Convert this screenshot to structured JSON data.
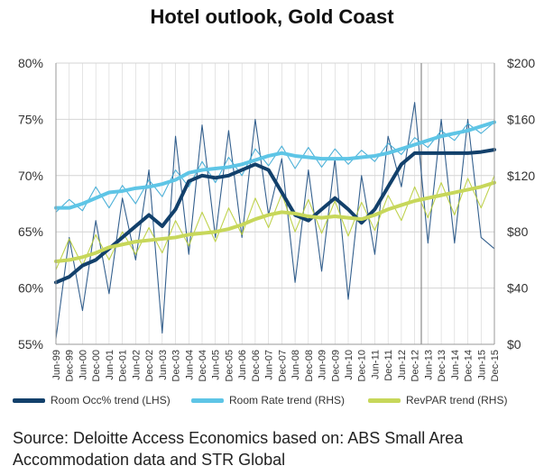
{
  "title": "Hotel outlook, Gold Coast",
  "source_note": "Source: Deloitte Access Economics based on: ABS Small Area Accommodation data and STR Global",
  "colors": {
    "occ_trend": "#12406b",
    "occ_raw": "#1e4f82",
    "rate_trend": "#5ec5e6",
    "rate_raw": "#3aa8d4",
    "revpar_trend": "#c7d75a",
    "revpar_raw": "#b8cd3a",
    "grid": "#d4d4d4",
    "marker": "#8c8c8c"
  },
  "chart_data": {
    "type": "line",
    "title": "Hotel outlook, Gold Coast",
    "x": [
      "Jun-99",
      "Dec-99",
      "Jun-00",
      "Dec-00",
      "Jun-01",
      "Dec-01",
      "Jun-02",
      "Dec-02",
      "Jun-03",
      "Dec-03",
      "Jun-04",
      "Dec-04",
      "Jun-05",
      "Dec-05",
      "Jun-06",
      "Dec-06",
      "Jun-07",
      "Dec-07",
      "Jun-08",
      "Dec-08",
      "Jun-09",
      "Dec-09",
      "Jun-10",
      "Dec-10",
      "Jun-11",
      "Dec-11",
      "Jun-12",
      "Dec-12",
      "Jun-13",
      "Dec-13",
      "Jun-14",
      "Dec-14",
      "Jun-15",
      "Dec-15"
    ],
    "y_left": {
      "min": 55,
      "max": 80,
      "ticks": [
        "55%",
        "60%",
        "65%",
        "70%",
        "75%",
        "80%"
      ]
    },
    "y_right": {
      "min": 0,
      "max": 200,
      "ticks": [
        "$0",
        "$40",
        "$80",
        "$120",
        "$160",
        "$200"
      ]
    },
    "grid": true,
    "legend_position": "bottom",
    "forecast_from": "Dec-12",
    "series": [
      {
        "name": "Room Occ% trend (LHS)",
        "axis": "left",
        "style": "trend",
        "color_key": "occ_trend",
        "values": [
          60.5,
          61.0,
          62.0,
          62.5,
          63.5,
          64.5,
          65.5,
          66.5,
          65.5,
          67.0,
          69.5,
          70.0,
          69.8,
          70.0,
          70.5,
          71.0,
          70.5,
          68.5,
          66.5,
          66.0,
          67.0,
          68.0,
          67.0,
          65.8,
          67.0,
          69.0,
          71.0,
          72.0,
          72.0,
          72.0,
          72.0,
          72.0,
          72.1,
          72.3
        ]
      },
      {
        "name": "Room Rate trend (RHS)",
        "axis": "right",
        "style": "trend",
        "color_key": "rate_trend",
        "values": [
          97,
          97,
          100,
          104,
          108,
          109,
          111,
          112,
          114,
          117,
          122,
          124,
          125,
          126,
          128,
          131,
          134,
          136,
          134,
          133,
          132,
          132,
          132,
          133,
          134,
          136,
          139,
          142,
          145,
          148,
          150,
          152,
          155,
          158
        ]
      },
      {
        "name": "RevPAR trend (RHS)",
        "axis": "right",
        "style": "trend",
        "color_key": "revpar_trend",
        "values": [
          59,
          60,
          62,
          65,
          69,
          71,
          73,
          74,
          75,
          76,
          78,
          79,
          80,
          82,
          85,
          89,
          92,
          94,
          93,
          91,
          90,
          91,
          90,
          89,
          92,
          96,
          99,
          102,
          104,
          106,
          108,
          110,
          112,
          115
        ]
      },
      {
        "name": "Room Occ% (LHS)",
        "axis": "left",
        "style": "raw",
        "color_key": "occ_raw",
        "values": [
          55.5,
          64.5,
          58.0,
          66.0,
          59.5,
          68.0,
          62.5,
          70.5,
          56.0,
          73.5,
          63.0,
          74.5,
          64.5,
          74.0,
          64.5,
          75.0,
          66.5,
          71.5,
          60.5,
          70.5,
          61.5,
          71.5,
          59.0,
          70.0,
          63.0,
          73.5,
          69.0,
          76.5,
          64.0,
          75.0,
          64.0,
          75.0,
          64.5,
          63.5
        ]
      },
      {
        "name": "Room Rate (RHS)",
        "axis": "right",
        "style": "raw",
        "color_key": "rate_raw",
        "values": [
          94,
          103,
          95,
          112,
          97,
          113,
          100,
          117,
          105,
          124,
          112,
          130,
          115,
          133,
          120,
          139,
          127,
          141,
          125,
          140,
          126,
          139,
          128,
          138,
          130,
          143,
          135,
          147,
          140,
          152,
          145,
          157,
          150,
          158
        ]
      },
      {
        "name": "RevPAR (RHS)",
        "axis": "right",
        "style": "raw",
        "color_key": "revpar_raw",
        "values": [
          53,
          75,
          56,
          78,
          60,
          80,
          64,
          83,
          65,
          88,
          70,
          94,
          73,
          97,
          78,
          104,
          83,
          107,
          80,
          103,
          79,
          102,
          77,
          101,
          81,
          106,
          88,
          112,
          90,
          115,
          92,
          118,
          97,
          120
        ]
      }
    ]
  }
}
